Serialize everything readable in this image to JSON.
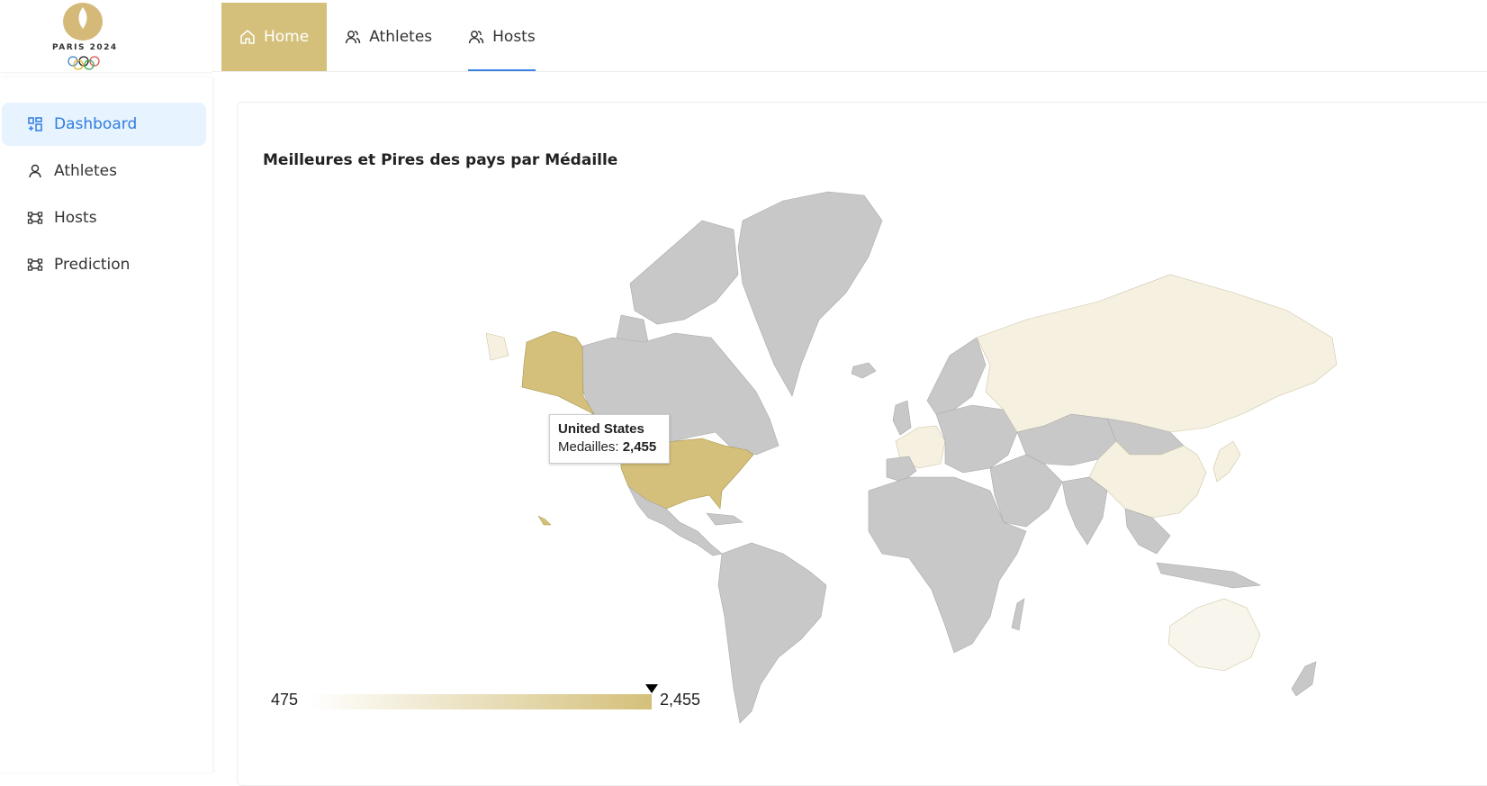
{
  "brand": {
    "logo_text": "PARIS 2024"
  },
  "topnav": {
    "items": [
      {
        "label": "Home",
        "icon": "home-icon",
        "active": true
      },
      {
        "label": "Athletes",
        "icon": "users-icon",
        "active": false
      },
      {
        "label": "Hosts",
        "icon": "users-icon",
        "active": false,
        "underlined": true
      }
    ]
  },
  "sidebar": {
    "items": [
      {
        "label": "Dashboard",
        "icon": "dashboard-icon",
        "active": true
      },
      {
        "label": "Athletes",
        "icon": "user-icon",
        "active": false
      },
      {
        "label": "Hosts",
        "icon": "frame-icon",
        "active": false
      },
      {
        "label": "Prediction",
        "icon": "frame-icon",
        "active": false
      }
    ]
  },
  "main": {
    "card_title": "Meilleures et Pires des pays par Médaille"
  },
  "chart_data": {
    "type": "geo",
    "title": "Meilleures et Pires des pays par Médaille",
    "value_label": "Medailles",
    "highlighted": [
      {
        "country": "United States",
        "value": 2455
      }
    ],
    "tooltip": {
      "country": "United States",
      "label": "Medailles:",
      "value": "2,455"
    },
    "legend": {
      "min": "475",
      "max": "2,455",
      "marker_fraction": 1.0
    },
    "colors": {
      "high": "#d4c07a",
      "low": "#f5f0e0",
      "no_data": "#c8c8c8"
    }
  },
  "colors": {
    "accent_gold": "#d4c07a",
    "accent_blue": "#2f7de1",
    "active_bg": "#e7f3fe"
  }
}
